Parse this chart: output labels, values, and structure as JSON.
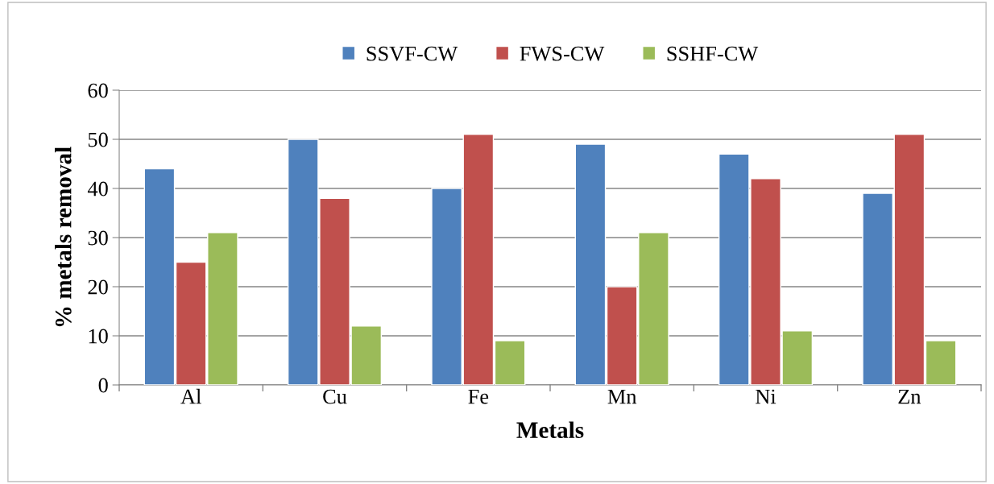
{
  "chart_data": {
    "type": "bar",
    "xlabel": "Metals",
    "ylabel": "% metals removal",
    "categories": [
      "Al",
      "Cu",
      "Fe",
      "Mn",
      "Ni",
      "Zn"
    ],
    "series": [
      {
        "name": "SSVF-CW",
        "color": "#4f81bd",
        "values": [
          44,
          50,
          40,
          49,
          47,
          39
        ]
      },
      {
        "name": "FWS-CW",
        "color": "#c0504d",
        "values": [
          25,
          38,
          51,
          20,
          42,
          51
        ]
      },
      {
        "name": "SSHF-CW",
        "color": "#9bbb59",
        "values": [
          31,
          12,
          9,
          31,
          11,
          9
        ]
      }
    ],
    "ylim": [
      0,
      60
    ],
    "yticks": [
      0,
      10,
      20,
      30,
      40,
      50,
      60
    ],
    "grid": "y",
    "legend": "top"
  }
}
